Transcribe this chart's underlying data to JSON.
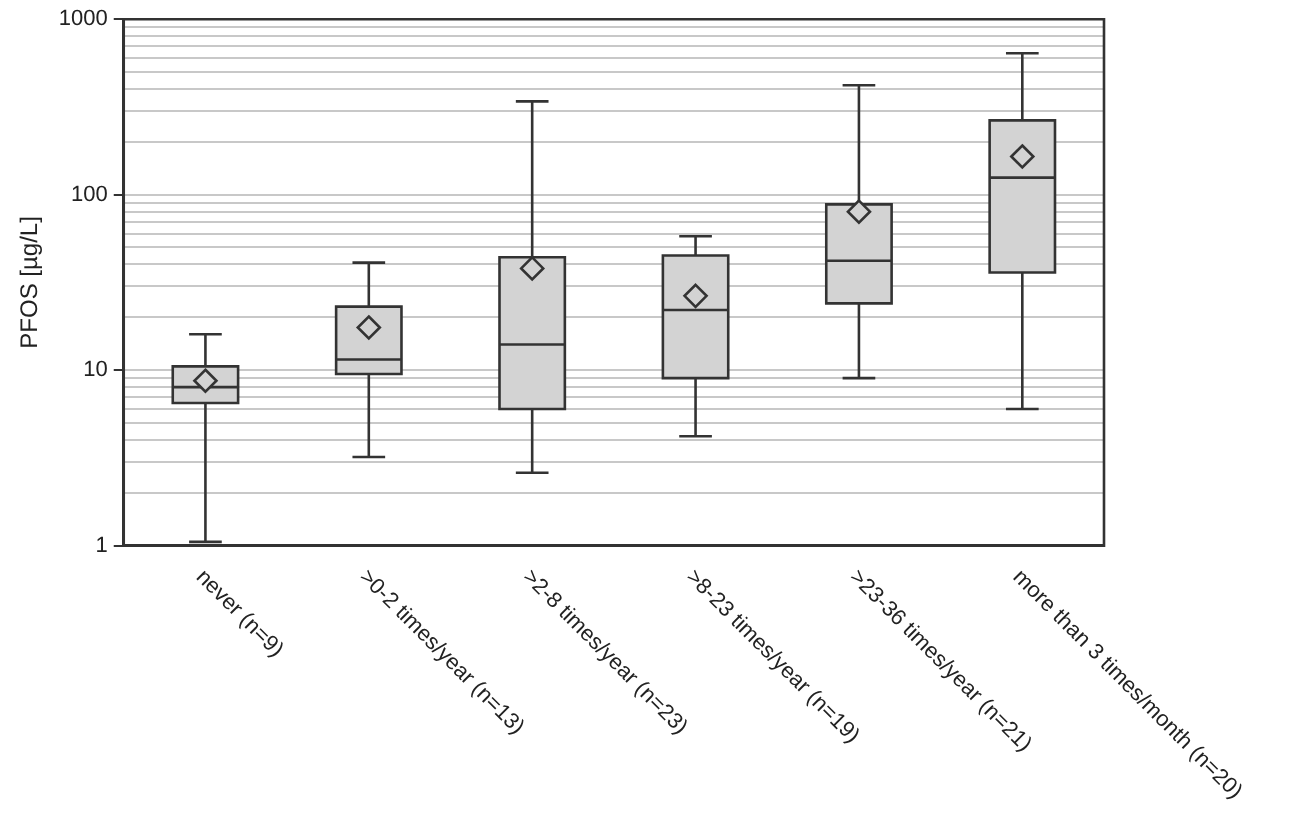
{
  "chart_data": {
    "type": "box",
    "ylabel": "PFOS [µg/L]",
    "categories": [
      "never (n=9)",
      ">0-2 times/year (n=13)",
      ">2-8 times/year (n=23)",
      ">8-23 times/year (n=19)",
      ">23-36 times/year (n=21)",
      "more than 3 times/month (n=20)"
    ],
    "boxes": [
      {
        "low": 1.05,
        "q1": 6.5,
        "median": 8,
        "q3": 10.5,
        "high": 16,
        "mean": 8.7
      },
      {
        "low": 3.2,
        "q1": 9.5,
        "median": 11.5,
        "q3": 23,
        "high": 41,
        "mean": 17.5
      },
      {
        "low": 2.6,
        "q1": 6,
        "median": 14,
        "q3": 44,
        "high": 340,
        "mean": 38
      },
      {
        "low": 4.2,
        "q1": 9,
        "median": 22,
        "q3": 45,
        "high": 58,
        "mean": 26.5
      },
      {
        "low": 9,
        "q1": 24,
        "median": 42,
        "q3": 88,
        "high": 420,
        "mean": 80
      },
      {
        "low": 6,
        "q1": 36,
        "median": 125,
        "q3": 265,
        "high": 640,
        "mean": 165
      }
    ],
    "color": "#d3d3d3",
    "log": true,
    "grid": true,
    "ylim": [
      1,
      1000
    ],
    "yticks": [
      1,
      {
        "value": 2,
        "label": null
      },
      {
        "value": 3,
        "label": null
      },
      {
        "value": 4,
        "label": null
      },
      {
        "value": 5,
        "label": null
      },
      {
        "value": 6,
        "label": null
      },
      {
        "value": 7,
        "label": null
      },
      {
        "value": 8,
        "label": null
      },
      {
        "value": 9,
        "label": null
      },
      10,
      {
        "value": 20,
        "label": null
      },
      {
        "value": 30,
        "label": null
      },
      {
        "value": 40,
        "label": null
      },
      {
        "value": 50,
        "label": null
      },
      {
        "value": 60,
        "label": null
      },
      {
        "value": 70,
        "label": null
      },
      {
        "value": 80,
        "label": null
      },
      {
        "value": 90,
        "label": null
      },
      100,
      {
        "value": 200,
        "label": null
      },
      {
        "value": 300,
        "label": null
      },
      {
        "value": 400,
        "label": null
      },
      {
        "value": 500,
        "label": null
      },
      {
        "value": 600,
        "label": null
      },
      {
        "value": 700,
        "label": null
      },
      {
        "value": 800,
        "label": null
      },
      {
        "value": 900,
        "label": null
      },
      1000
    ]
  }
}
